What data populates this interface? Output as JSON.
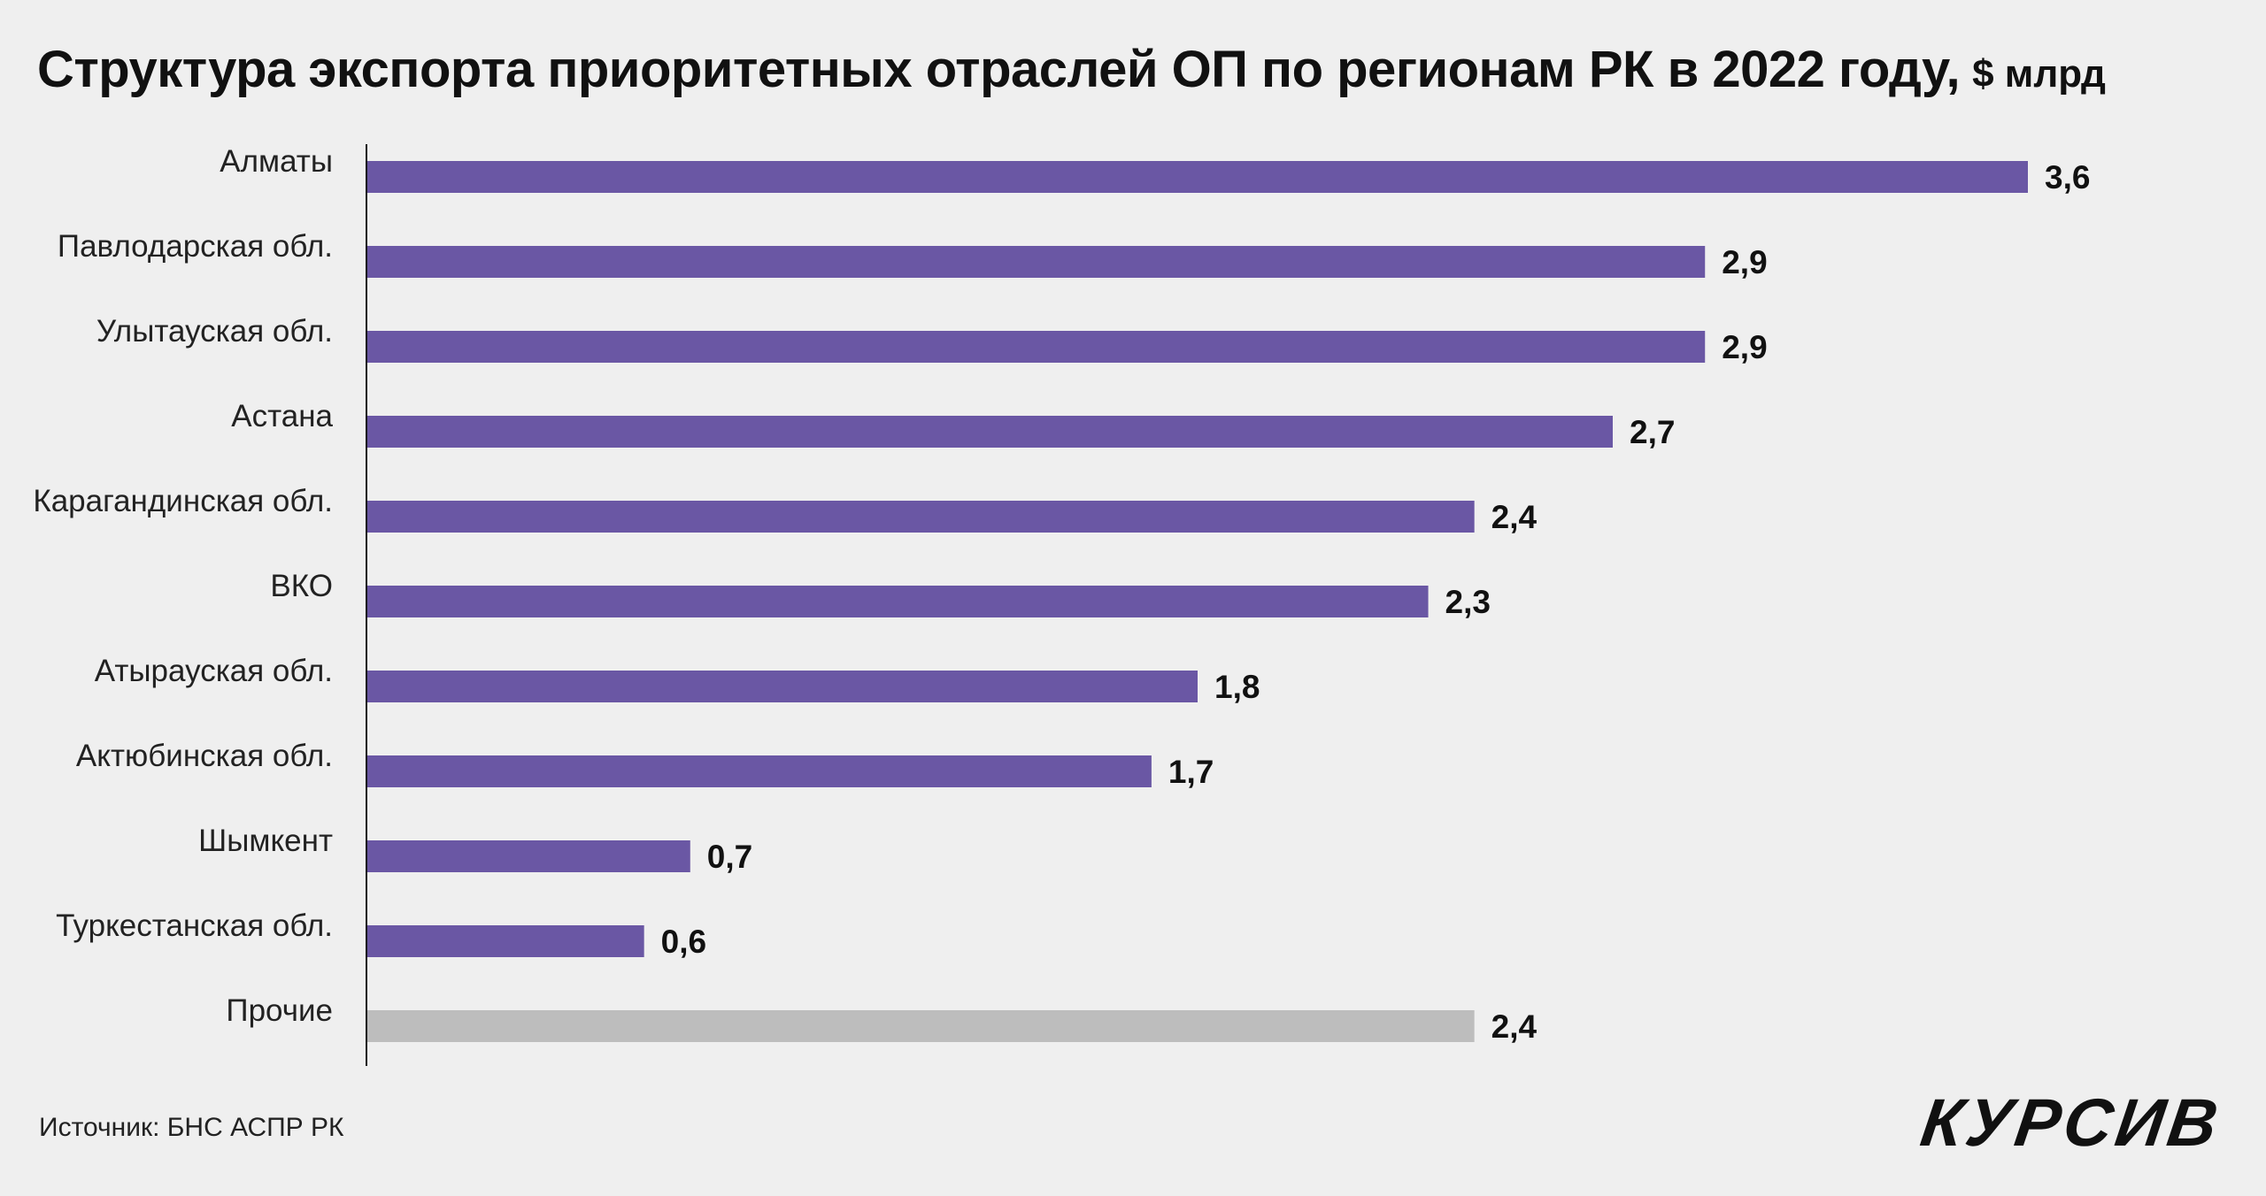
{
  "chart_data": {
    "type": "bar",
    "orientation": "horizontal",
    "title": "Структура экспорта приоритетных отраслей ОП по регионам РК в 2022 году,",
    "title_unit": "$ млрд",
    "categories": [
      "Алматы",
      "Павлодарская обл.",
      "Улытауская обл.",
      "Астана",
      "Карагандинская обл.",
      "ВКО",
      "Атырауская обл.",
      "Актюбинская обл.",
      "Шымкент",
      "Туркестанская обл.",
      "Прочие"
    ],
    "values": [
      3.6,
      2.9,
      2.9,
      2.7,
      2.4,
      2.3,
      1.8,
      1.7,
      0.7,
      0.6,
      2.4
    ],
    "value_labels": [
      "3,6",
      "2,9",
      "2,9",
      "2,7",
      "2,4",
      "2,3",
      "1,8",
      "1,7",
      "0,7",
      "0,6",
      "2,4"
    ],
    "bar_colors": [
      "#6a57a4",
      "#6a57a4",
      "#6a57a4",
      "#6a57a4",
      "#6a57a4",
      "#6a57a4",
      "#6a57a4",
      "#6a57a4",
      "#6a57a4",
      "#6a57a4",
      "#bdbdbd"
    ],
    "xlim": [
      0,
      3.6
    ],
    "xlabel": "",
    "ylabel": "",
    "grid": false
  },
  "source": "Источник: БНС АСПР РК",
  "brand": "КУРСИВ"
}
